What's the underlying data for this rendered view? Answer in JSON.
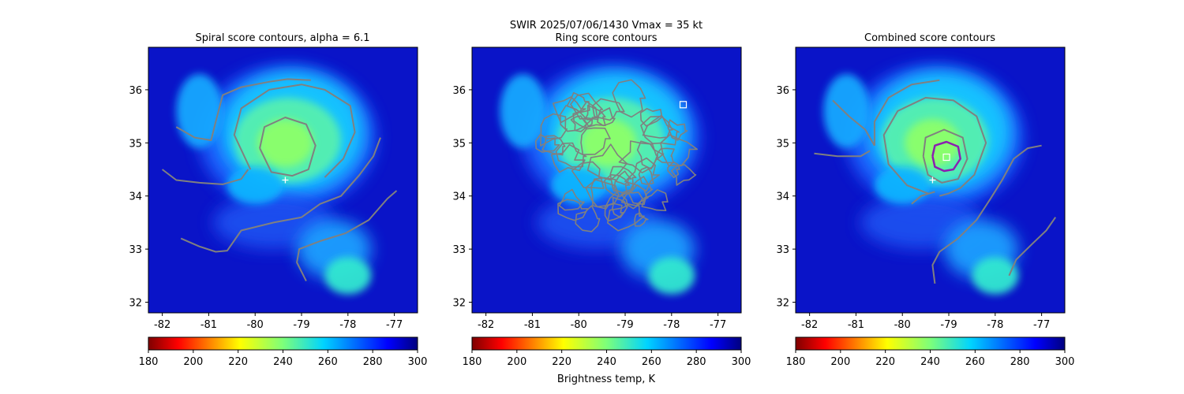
{
  "figure": {
    "suptitle_line1": "SWIR  2025/07/06/1430    Vmax = 35 kt",
    "colorbar_label": "Brightness temp, K"
  },
  "chart_data": [
    {
      "type": "heatmap",
      "title": "Spiral score contours, alpha =  6.1",
      "xlim": [
        -82.3,
        -76.5
      ],
      "ylim": [
        31.8,
        36.8
      ],
      "x_ticks": [
        "-82",
        "-81",
        "-80",
        "-79",
        "-78",
        "-77"
      ],
      "y_ticks": [
        "32",
        "33",
        "34",
        "35",
        "36"
      ],
      "colorbar_ticks": [
        "180",
        "200",
        "220",
        "240",
        "260",
        "280",
        "300"
      ],
      "colorbar_range": [
        180,
        300
      ],
      "colormap": "jet_r",
      "contour_color": "#808080",
      "marker_plus": {
        "lon": -79.35,
        "lat": 34.3,
        "color": "#ffffff"
      },
      "contours": [
        [
          [
            -79.9,
            34.9
          ],
          [
            -79.8,
            35.3
          ],
          [
            -79.35,
            35.48
          ],
          [
            -78.9,
            35.35
          ],
          [
            -78.7,
            34.95
          ],
          [
            -78.85,
            34.5
          ],
          [
            -79.2,
            34.38
          ],
          [
            -79.65,
            34.45
          ],
          [
            -79.9,
            34.9
          ]
        ],
        [
          [
            -80.1,
            34.5
          ],
          [
            -80.45,
            35.15
          ],
          [
            -80.3,
            35.65
          ],
          [
            -79.7,
            36.0
          ],
          [
            -79.0,
            36.1
          ],
          [
            -78.5,
            36.0
          ],
          [
            -77.95,
            35.7
          ],
          [
            -77.85,
            35.2
          ],
          [
            -78.1,
            34.7
          ],
          [
            -78.5,
            34.35
          ]
        ],
        [
          [
            -81.7,
            35.3
          ],
          [
            -81.3,
            35.1
          ],
          [
            -80.95,
            35.05
          ],
          [
            -80.85,
            35.4
          ],
          [
            -80.7,
            35.9
          ],
          [
            -80.3,
            36.05
          ],
          [
            -79.7,
            36.15
          ],
          [
            -79.3,
            36.2
          ],
          [
            -78.8,
            36.18
          ]
        ],
        [
          [
            -82.0,
            34.5
          ],
          [
            -81.7,
            34.3
          ],
          [
            -81.2,
            34.25
          ],
          [
            -80.7,
            34.22
          ],
          [
            -80.3,
            34.32
          ],
          [
            -80.15,
            34.5
          ]
        ],
        [
          [
            -81.6,
            33.2
          ],
          [
            -81.2,
            33.05
          ],
          [
            -80.85,
            32.95
          ],
          [
            -80.6,
            32.97
          ],
          [
            -80.3,
            33.35
          ],
          [
            -79.6,
            33.5
          ],
          [
            -79.0,
            33.6
          ],
          [
            -78.6,
            33.85
          ],
          [
            -78.15,
            34.0
          ],
          [
            -77.75,
            34.4
          ],
          [
            -77.45,
            34.75
          ],
          [
            -77.3,
            35.1
          ]
        ],
        [
          [
            -78.9,
            32.4
          ],
          [
            -79.1,
            32.75
          ],
          [
            -79.05,
            33.0
          ],
          [
            -78.6,
            33.15
          ],
          [
            -78.05,
            33.3
          ],
          [
            -77.55,
            33.55
          ],
          [
            -77.15,
            33.95
          ],
          [
            -76.95,
            34.1
          ]
        ]
      ]
    },
    {
      "type": "heatmap",
      "title": "Ring score contours",
      "xlim": [
        -82.3,
        -76.5
      ],
      "ylim": [
        31.8,
        36.8
      ],
      "x_ticks": [
        "-82",
        "-81",
        "-80",
        "-79",
        "-78",
        "-77"
      ],
      "y_ticks": [
        "32",
        "33",
        "34",
        "35",
        "36"
      ],
      "colorbar_ticks": [
        "180",
        "200",
        "220",
        "240",
        "260",
        "280",
        "300"
      ],
      "colorbar_range": [
        180,
        300
      ],
      "colormap": "jet_r",
      "contour_color": "#808080",
      "marker_square": {
        "lon": -77.75,
        "lat": 35.72,
        "color": "#ffffff"
      },
      "ring_region": {
        "center_lon": -79.2,
        "center_lat": 34.75,
        "radius_deg": 1.6,
        "min_lon": -81.05,
        "min_lat": 33.1
      }
    },
    {
      "type": "heatmap",
      "title": "Combined score contours",
      "xlim": [
        -82.3,
        -76.5
      ],
      "ylim": [
        31.8,
        36.8
      ],
      "x_ticks": [
        "-82",
        "-81",
        "-80",
        "-79",
        "-78",
        "-77"
      ],
      "y_ticks": [
        "32",
        "33",
        "34",
        "35",
        "36"
      ],
      "colorbar_ticks": [
        "180",
        "200",
        "220",
        "240",
        "260",
        "280",
        "300"
      ],
      "colorbar_range": [
        180,
        300
      ],
      "colormap": "jet_r",
      "contour_color": "#808080",
      "highlight_color": "#8b1fb0",
      "marker_plus": {
        "lon": -79.35,
        "lat": 34.3,
        "color": "#ffffff"
      },
      "marker_square": {
        "lon": -79.05,
        "lat": 34.73,
        "color": "#ffffff"
      },
      "highlight_contour": [
        [
          -79.35,
          34.75
        ],
        [
          -79.3,
          34.95
        ],
        [
          -79.05,
          35.02
        ],
        [
          -78.8,
          34.93
        ],
        [
          -78.75,
          34.7
        ],
        [
          -78.9,
          34.5
        ],
        [
          -79.1,
          34.47
        ],
        [
          -79.3,
          34.55
        ],
        [
          -79.35,
          34.75
        ]
      ],
      "contours": [
        [
          [
            -79.55,
            34.75
          ],
          [
            -79.5,
            35.1
          ],
          [
            -79.1,
            35.25
          ],
          [
            -78.7,
            35.1
          ],
          [
            -78.6,
            34.7
          ],
          [
            -78.8,
            34.32
          ],
          [
            -79.15,
            34.25
          ],
          [
            -79.45,
            34.4
          ],
          [
            -79.55,
            34.75
          ]
        ],
        [
          [
            -79.45,
            34.05
          ],
          [
            -79.9,
            34.2
          ],
          [
            -80.3,
            34.6
          ],
          [
            -80.4,
            35.15
          ],
          [
            -80.1,
            35.6
          ],
          [
            -79.5,
            35.85
          ],
          [
            -78.9,
            35.8
          ],
          [
            -78.4,
            35.5
          ],
          [
            -78.2,
            35.0
          ],
          [
            -78.45,
            34.4
          ],
          [
            -78.75,
            34.15
          ],
          [
            -79.0,
            34.05
          ],
          [
            -79.2,
            34.0
          ]
        ],
        [
          [
            -81.5,
            35.8
          ],
          [
            -81.15,
            35.5
          ],
          [
            -80.8,
            35.25
          ],
          [
            -80.6,
            34.95
          ]
        ],
        [
          [
            -81.9,
            34.8
          ],
          [
            -81.4,
            34.75
          ],
          [
            -80.9,
            34.75
          ],
          [
            -80.7,
            34.85
          ]
        ],
        [
          [
            -79.3,
            34.08
          ],
          [
            -79.6,
            34.0
          ],
          [
            -79.8,
            33.85
          ]
        ],
        [
          [
            -80.6,
            34.95
          ],
          [
            -80.6,
            35.4
          ],
          [
            -80.3,
            35.85
          ],
          [
            -79.8,
            36.1
          ],
          [
            -79.2,
            36.18
          ]
        ],
        [
          [
            -79.3,
            32.35
          ],
          [
            -79.35,
            32.7
          ],
          [
            -79.2,
            32.95
          ],
          [
            -78.8,
            33.2
          ],
          [
            -78.4,
            33.55
          ],
          [
            -78.1,
            33.95
          ],
          [
            -77.85,
            34.3
          ],
          [
            -77.6,
            34.7
          ],
          [
            -77.3,
            34.9
          ],
          [
            -77.0,
            34.95
          ]
        ],
        [
          [
            -77.7,
            32.5
          ],
          [
            -77.55,
            32.8
          ],
          [
            -77.2,
            33.1
          ],
          [
            -76.9,
            33.35
          ],
          [
            -76.7,
            33.6
          ]
        ]
      ]
    }
  ]
}
